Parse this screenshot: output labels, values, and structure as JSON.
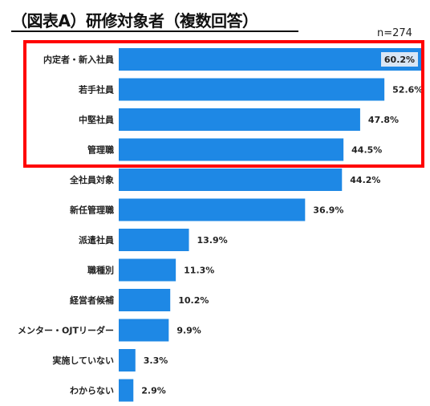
{
  "header": {
    "title": "（図表A）研修対象者（複数回答）",
    "sample_size": "n=274"
  },
  "colors": {
    "bar": "#1e88e5",
    "highlight_box": "#ff0000"
  },
  "chart_data": {
    "type": "bar",
    "orientation": "horizontal",
    "title": "（図表A）研修対象者（複数回答）",
    "categories": [
      "内定者・新入社員",
      "若手社員",
      "中堅社員",
      "管理職",
      "全社員対象",
      "新任管理職",
      "派遣社員",
      "職種別",
      "経営者候補",
      "メンター・OJTリーダー",
      "実施していない",
      "わからない"
    ],
    "values": [
      60.2,
      52.6,
      47.8,
      44.5,
      44.2,
      36.9,
      13.9,
      11.3,
      10.2,
      9.9,
      3.3,
      2.9
    ],
    "value_labels": [
      "60.2%",
      "52.6%",
      "47.8%",
      "44.5%",
      "44.2%",
      "36.9%",
      "13.9%",
      "11.3%",
      "10.2%",
      "9.9%",
      "3.3%",
      "2.9%"
    ],
    "unit": "%",
    "xlim": [
      0,
      60.2
    ],
    "grid": false,
    "highlighted_categories": [
      "内定者・新入社員",
      "若手社員",
      "中堅社員",
      "管理職"
    ]
  }
}
